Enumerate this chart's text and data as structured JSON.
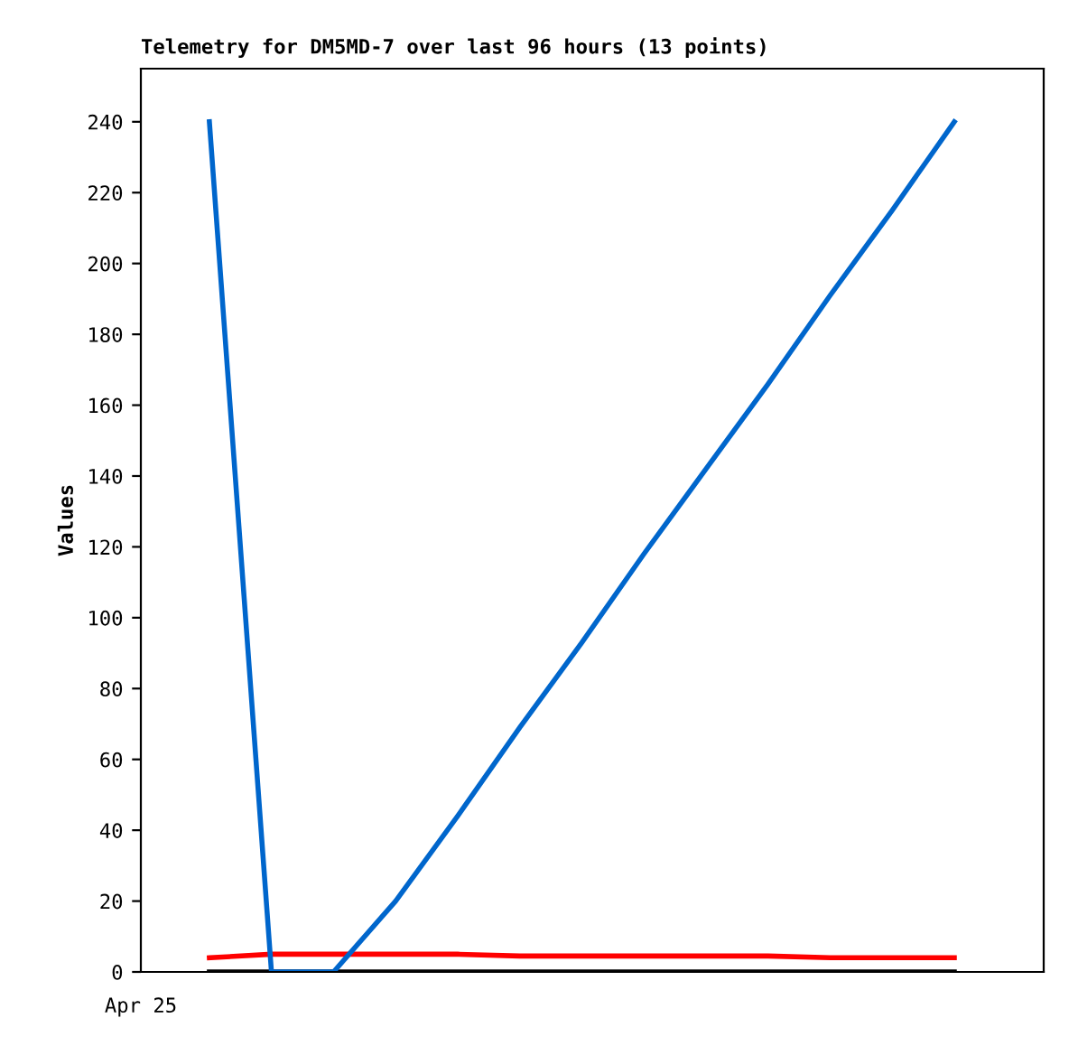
{
  "chart_data": {
    "type": "line",
    "title": "Telemetry for DM5MD-7 over last 96 hours (13 points)",
    "ylabel": "Values",
    "annotations": [
      "Apr 25"
    ],
    "categories": [
      null,
      null,
      null,
      null,
      null,
      null,
      null,
      null,
      null,
      null,
      null,
      null,
      null
    ],
    "ylim": [
      0,
      255
    ],
    "yticks": [
      0,
      20,
      40,
      60,
      80,
      100,
      120,
      140,
      160,
      180,
      200,
      220,
      240
    ],
    "grid": false,
    "legend": false,
    "marker": "none",
    "line_style": "solid",
    "series": [
      {
        "color": "#000000",
        "values": [
          0,
          0,
          0,
          0,
          0,
          0,
          0,
          0,
          0,
          0,
          0,
          0,
          0
        ]
      },
      {
        "color": "#ff0000",
        "values": [
          4,
          5,
          5,
          5,
          5,
          4.5,
          4.5,
          4.5,
          4.5,
          4.5,
          4,
          4,
          4
        ]
      },
      {
        "color": "#0066cc",
        "values": [
          240,
          0,
          0,
          20,
          44,
          69,
          93,
          118,
          142,
          166,
          191,
          215,
          240
        ]
      }
    ]
  }
}
